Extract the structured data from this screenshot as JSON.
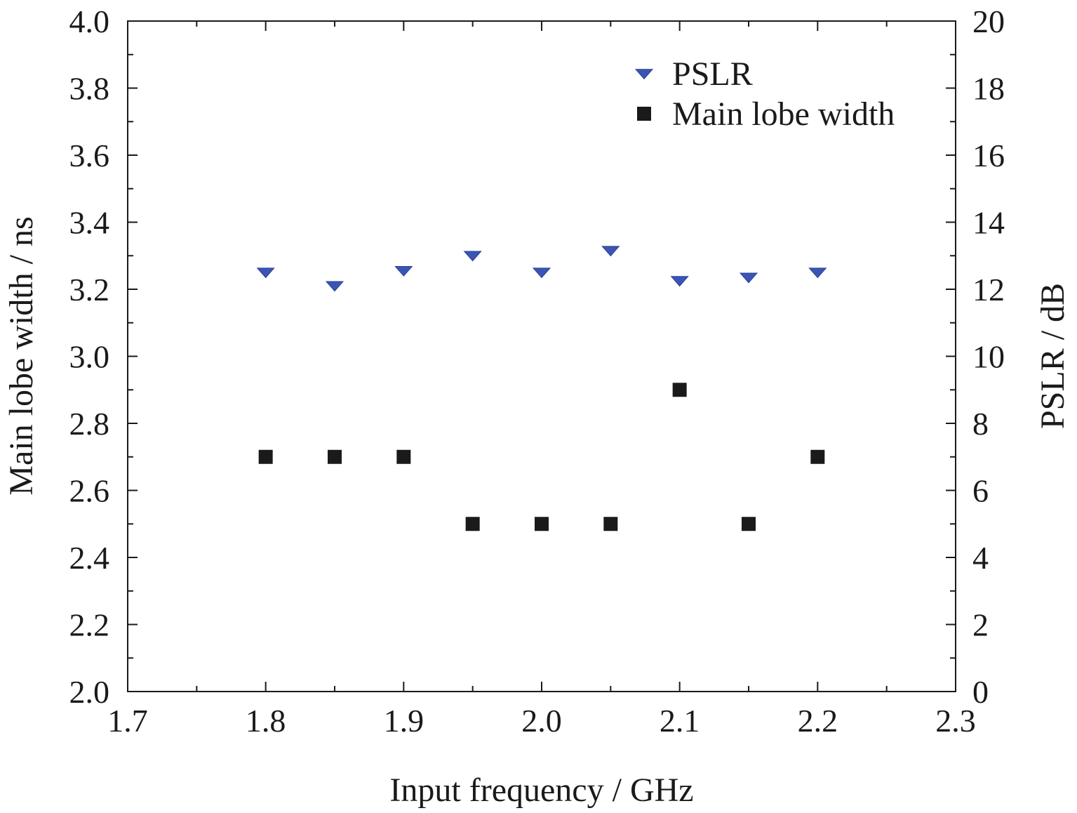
{
  "chart_data": {
    "type": "scatter",
    "xlabel": "Input frequency / GHz",
    "ylabel_left": "Main lobe width / ns",
    "ylabel_right": "PSLR / dB",
    "xlim": [
      1.7,
      2.3
    ],
    "ylim_left": [
      2.0,
      4.0
    ],
    "ylim_right": [
      0,
      20
    ],
    "x_ticks": [
      "1.7",
      "1.8",
      "1.9",
      "2.0",
      "2.1",
      "2.2",
      "2.3"
    ],
    "y_ticks_left": [
      "2.0",
      "2.2",
      "2.4",
      "2.6",
      "2.8",
      "3.0",
      "3.2",
      "3.4",
      "3.6",
      "3.8",
      "4.0"
    ],
    "y_ticks_right": [
      "0",
      "2",
      "4",
      "6",
      "8",
      "10",
      "12",
      "14",
      "16",
      "18",
      "20"
    ],
    "grid": false,
    "legend_position": "top-right",
    "series": [
      {
        "name": "PSLR",
        "axis": "right",
        "marker": "triangle-down",
        "color": "#3a55b4",
        "x": [
          1.8,
          1.85,
          1.9,
          1.95,
          2.0,
          2.05,
          2.1,
          2.15,
          2.2
        ],
        "y": [
          12.5,
          12.1,
          12.55,
          13.0,
          12.5,
          13.15,
          12.25,
          12.35,
          12.5
        ]
      },
      {
        "name": "Main lobe width",
        "axis": "left",
        "marker": "square",
        "color": "#1a1a1a",
        "x": [
          1.8,
          1.85,
          1.9,
          1.95,
          2.0,
          2.05,
          2.1,
          2.15,
          2.2
        ],
        "y": [
          2.7,
          2.7,
          2.7,
          2.5,
          2.5,
          2.5,
          2.9,
          2.5,
          2.7
        ]
      }
    ]
  }
}
